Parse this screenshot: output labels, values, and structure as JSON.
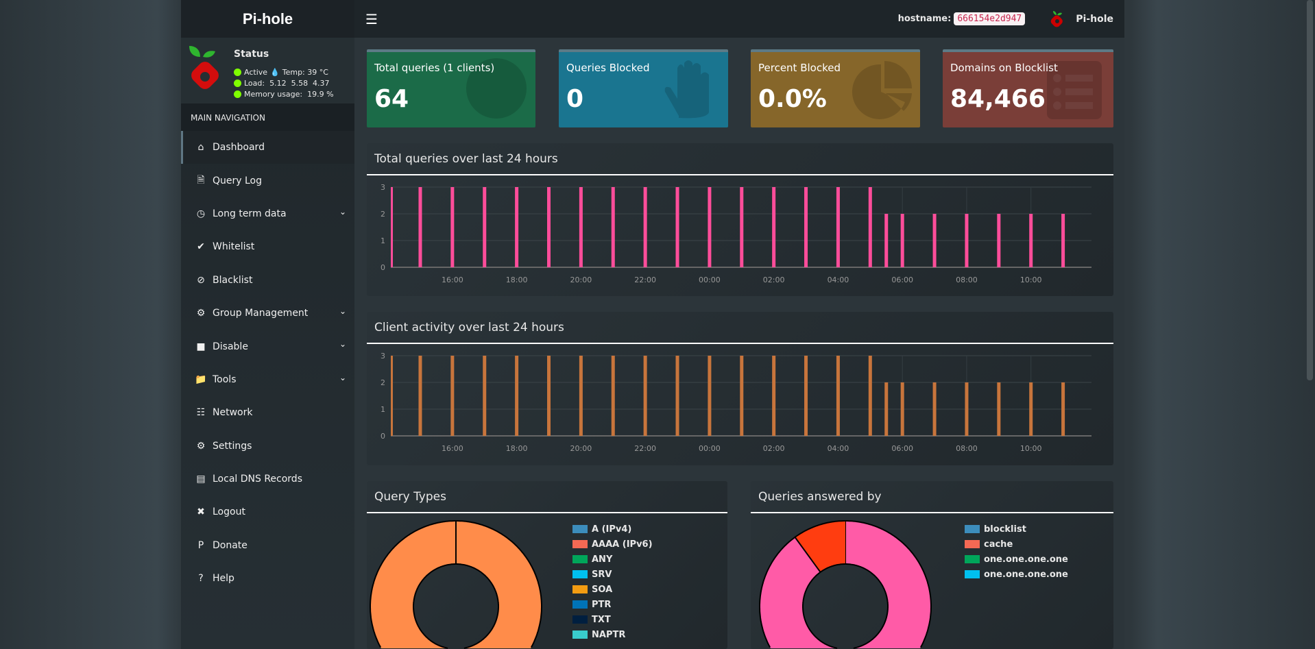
{
  "app": {
    "title": "Pi-hole"
  },
  "header": {
    "menu_icon": "hamburger-icon",
    "hostname_label": "hostname:",
    "hostname": "666154e2d947",
    "user": "Pi-hole"
  },
  "status": {
    "title": "Status",
    "state": "Active",
    "temp": "Temp: 39 °C",
    "load": "Load:  5.12  5.58  4.37",
    "memory": "Memory usage:  19.9 %"
  },
  "sidebar": {
    "heading": "MAIN NAVIGATION",
    "items": [
      {
        "label": "Dashboard",
        "icon": "home-icon",
        "active": true
      },
      {
        "label": "Query Log",
        "icon": "file-icon"
      },
      {
        "label": "Long term data",
        "icon": "clock-icon",
        "submenu": true
      },
      {
        "label": "Whitelist",
        "icon": "check-circle-icon"
      },
      {
        "label": "Blacklist",
        "icon": "ban-icon"
      },
      {
        "label": "Group Management",
        "icon": "users-cog-icon",
        "submenu": true
      },
      {
        "label": "Disable",
        "icon": "stop-icon",
        "submenu": true
      },
      {
        "label": "Tools",
        "icon": "folder-icon",
        "submenu": true
      },
      {
        "label": "Network",
        "icon": "network-icon"
      },
      {
        "label": "Settings",
        "icon": "cogs-icon"
      },
      {
        "label": "Local DNS Records",
        "icon": "address-book-icon"
      },
      {
        "label": "Logout",
        "icon": "user-times-icon"
      },
      {
        "label": "Donate",
        "icon": "paypal-icon"
      },
      {
        "label": "Help",
        "icon": "question-circle-icon"
      }
    ]
  },
  "cards": [
    {
      "label": "Total queries (1 clients)",
      "value": "64",
      "color": "#1b6b48",
      "icon": "globe-icon"
    },
    {
      "label": "Queries Blocked",
      "value": "0",
      "color": "#1a7590",
      "icon": "hand-icon"
    },
    {
      "label": "Percent Blocked",
      "value": "0.0%",
      "color": "#86662a",
      "icon": "pie-chart-icon"
    },
    {
      "label": "Domains on Blocklist",
      "value": "84,466",
      "color": "#7a3e38",
      "icon": "list-icon"
    }
  ],
  "chart_data": [
    {
      "type": "bar",
      "title": "Total queries over last 24 hours",
      "color": "#ff4d9a",
      "xlim": [
        "14:05",
        "11:53"
      ],
      "ylim": [
        0,
        3
      ],
      "yticks": [
        "0",
        "1",
        "2",
        "3"
      ],
      "xticks": [
        "16:00",
        "18:00",
        "20:00",
        "22:00",
        "00:00",
        "02:00",
        "04:00",
        "06:00",
        "08:00",
        "10:00"
      ],
      "x": [
        "14:05",
        "15:00",
        "16:00",
        "17:00",
        "18:00",
        "19:00",
        "20:00",
        "21:00",
        "22:00",
        "23:00",
        "00:00",
        "01:00",
        "02:00",
        "03:00",
        "04:00",
        "05:00",
        "05:30",
        "06:00",
        "07:00",
        "08:00",
        "09:00",
        "10:00",
        "11:00"
      ],
      "values": [
        3,
        3,
        3,
        3,
        3,
        3,
        3,
        3,
        3,
        3,
        3,
        3,
        3,
        3,
        3,
        3,
        2,
        2,
        2,
        2,
        2,
        2,
        2
      ]
    },
    {
      "type": "bar",
      "title": "Client activity over last 24 hours",
      "color": "#c8753c",
      "xlim": [
        "14:05",
        "11:53"
      ],
      "ylim": [
        0,
        3
      ],
      "yticks": [
        "0",
        "1",
        "2",
        "3"
      ],
      "xticks": [
        "16:00",
        "18:00",
        "20:00",
        "22:00",
        "00:00",
        "02:00",
        "04:00",
        "06:00",
        "08:00",
        "10:00"
      ],
      "x": [
        "14:05",
        "15:00",
        "16:00",
        "17:00",
        "18:00",
        "19:00",
        "20:00",
        "21:00",
        "22:00",
        "23:00",
        "00:00",
        "01:00",
        "02:00",
        "03:00",
        "04:00",
        "05:00",
        "05:30",
        "06:00",
        "07:00",
        "08:00",
        "09:00",
        "10:00",
        "11:00"
      ],
      "values": [
        3,
        3,
        3,
        3,
        3,
        3,
        3,
        3,
        3,
        3,
        3,
        3,
        3,
        3,
        3,
        3,
        2,
        2,
        2,
        2,
        2,
        2,
        2
      ]
    },
    {
      "type": "pie",
      "title": "Query Types",
      "slices": [
        {
          "value": 100,
          "color": "#ff8c4a"
        }
      ],
      "legend": [
        {
          "label": "A (IPv4)",
          "color": "#3c8dbc"
        },
        {
          "label": "AAAA (IPv6)",
          "color": "#f56954"
        },
        {
          "label": "ANY",
          "color": "#00a65a"
        },
        {
          "label": "SRV",
          "color": "#00c0ef"
        },
        {
          "label": "SOA",
          "color": "#f39c12"
        },
        {
          "label": "PTR",
          "color": "#0073b7"
        },
        {
          "label": "TXT",
          "color": "#001f3f"
        },
        {
          "label": "NAPTR",
          "color": "#39cccc"
        }
      ]
    },
    {
      "type": "pie",
      "title": "Queries answered by",
      "slices": [
        {
          "value": 90,
          "color": "#ff5ba7"
        },
        {
          "value": 10,
          "color": "#ff3d10"
        }
      ],
      "legend": [
        {
          "label": "blocklist",
          "color": "#3c8dbc"
        },
        {
          "label": "cache",
          "color": "#f56954"
        },
        {
          "label": "one.one.one.one",
          "color": "#00a65a"
        },
        {
          "label": "one.one.one.one",
          "color": "#00c0ef"
        }
      ]
    }
  ]
}
